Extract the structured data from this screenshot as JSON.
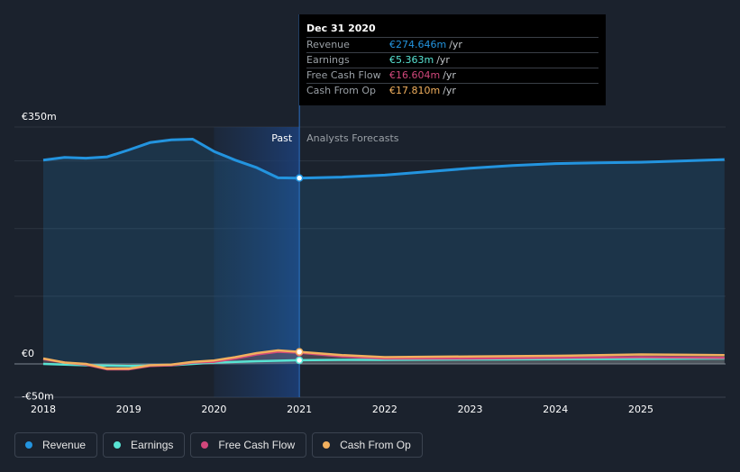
{
  "tooltip": {
    "date": "Dec 31 2020",
    "rows": [
      {
        "label": "Revenue",
        "value": "€274.646m",
        "unit": "/yr",
        "color": "#2394df"
      },
      {
        "label": "Earnings",
        "value": "€5.363m",
        "unit": "/yr",
        "color": "#58e3d3"
      },
      {
        "label": "Free Cash Flow",
        "value": "€16.604m",
        "unit": "/yr",
        "color": "#d1477b"
      },
      {
        "label": "Cash From Op",
        "value": "€17.810m",
        "unit": "/yr",
        "color": "#f2b05e"
      }
    ]
  },
  "legend": [
    {
      "label": "Revenue",
      "color": "#2394df"
    },
    {
      "label": "Earnings",
      "color": "#58e3d3"
    },
    {
      "label": "Free Cash Flow",
      "color": "#d1477b"
    },
    {
      "label": "Cash From Op",
      "color": "#f2b05e"
    }
  ],
  "chart_data": {
    "type": "area",
    "title": "",
    "currency": "€",
    "regions": {
      "past_label": "Past",
      "forecast_label": "Analysts Forecasts",
      "divider_x": 2021.0,
      "highlight_start": 2020.0
    },
    "x_ticks": [
      2018,
      2019,
      2020,
      2021,
      2022,
      2023,
      2024,
      2025
    ],
    "xlim": [
      2017.85,
      2025.98
    ],
    "ylim": [
      -50,
      350
    ],
    "y_tick_labels": [
      {
        "value": 350,
        "label": "€350m"
      },
      {
        "value": 0,
        "label": "€0"
      },
      {
        "value": -50,
        "label": "-€50m"
      }
    ],
    "y_grid": [
      350,
      300,
      200,
      100,
      0
    ],
    "series": [
      {
        "name": "Revenue",
        "color": "#2394df",
        "x": [
          2018.0,
          2018.25,
          2018.5,
          2018.75,
          2019.0,
          2019.25,
          2019.5,
          2019.75,
          2020.0,
          2020.25,
          2020.5,
          2020.75,
          2021.0,
          2021.5,
          2022.0,
          2022.5,
          2023.0,
          2023.5,
          2024.0,
          2024.5,
          2025.0,
          2025.5,
          2025.98
        ],
        "values": [
          301,
          305,
          304,
          306,
          316,
          327,
          331,
          332,
          314,
          301,
          290,
          275,
          274.6,
          276,
          279,
          284,
          289,
          293,
          296,
          297,
          298,
          300,
          302
        ]
      },
      {
        "name": "Earnings",
        "color": "#58e3d3",
        "x": [
          2018.0,
          2018.5,
          2019.0,
          2019.5,
          2020.0,
          2020.5,
          2021.0,
          2021.5,
          2022.0,
          2023.0,
          2024.0,
          2025.0,
          2025.98
        ],
        "values": [
          0,
          -2,
          -3,
          -2,
          2,
          4,
          5.4,
          6,
          6,
          6.5,
          7,
          7.5,
          8
        ]
      },
      {
        "name": "Free Cash Flow",
        "color": "#d1477b",
        "x": [
          2018.0,
          2018.25,
          2018.5,
          2018.75,
          2019.0,
          2019.25,
          2019.5,
          2019.75,
          2020.0,
          2020.25,
          2020.5,
          2020.75,
          2021.0,
          2021.5,
          2022.0,
          2023.0,
          2024.0,
          2025.0,
          2025.98
        ],
        "values": [
          7,
          2,
          -1,
          -8,
          -8,
          -3,
          -2,
          2,
          3,
          8,
          14,
          18,
          16.6,
          11,
          8,
          8,
          9,
          10,
          9
        ]
      },
      {
        "name": "Cash From Op",
        "color": "#f2b05e",
        "x": [
          2018.0,
          2018.25,
          2018.5,
          2018.75,
          2019.0,
          2019.25,
          2019.5,
          2019.75,
          2020.0,
          2020.25,
          2020.5,
          2020.75,
          2021.0,
          2021.5,
          2022.0,
          2023.0,
          2024.0,
          2025.0,
          2025.98
        ],
        "values": [
          8,
          2,
          0,
          -7,
          -7,
          -2,
          -1,
          3,
          5,
          10,
          16,
          20,
          17.8,
          13,
          10,
          11,
          12,
          14,
          13
        ]
      }
    ]
  }
}
